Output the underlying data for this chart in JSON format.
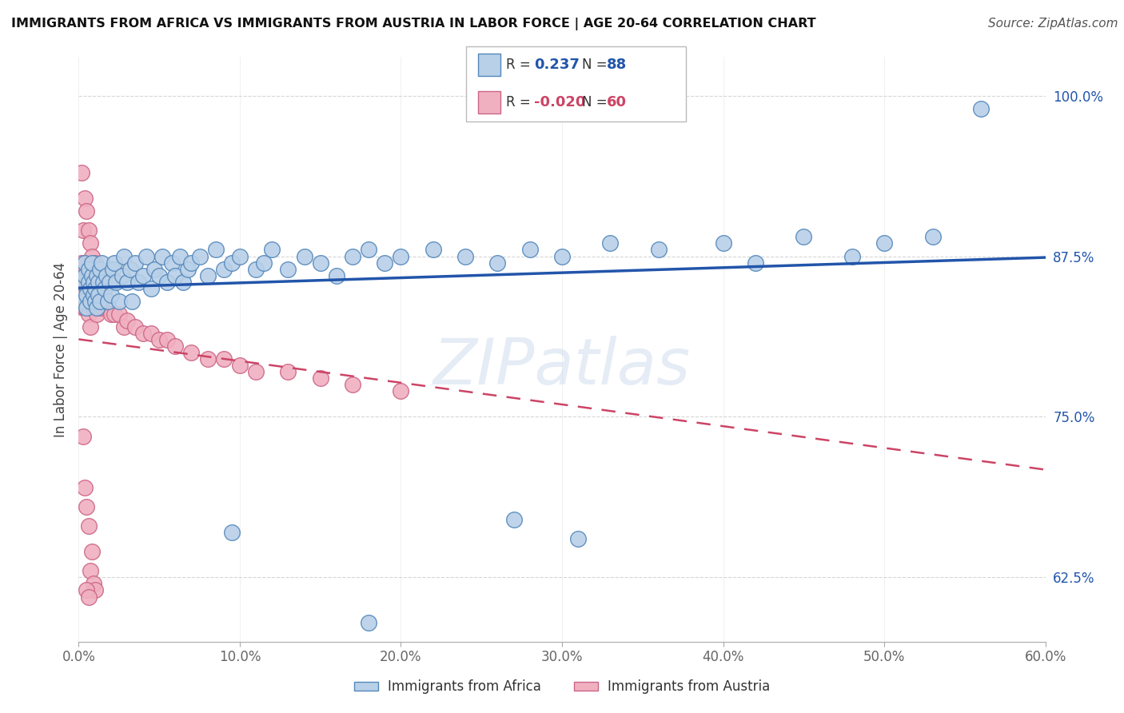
{
  "title": "IMMIGRANTS FROM AFRICA VS IMMIGRANTS FROM AUSTRIA IN LABOR FORCE | AGE 20-64 CORRELATION CHART",
  "source": "Source: ZipAtlas.com",
  "ylabel": "In Labor Force | Age 20-64",
  "xlim": [
    0.0,
    0.6
  ],
  "ylim": [
    0.575,
    1.03
  ],
  "xticks": [
    0.0,
    0.1,
    0.2,
    0.3,
    0.4,
    0.5,
    0.6
  ],
  "xticklabels": [
    "0.0%",
    "10.0%",
    "20.0%",
    "30.0%",
    "40.0%",
    "50.0%",
    "60.0%"
  ],
  "yticks": [
    0.625,
    0.75,
    0.875,
    1.0
  ],
  "yticklabels": [
    "62.5%",
    "75.0%",
    "87.5%",
    "100.0%"
  ],
  "africa_color": "#b8d0e8",
  "africa_edge": "#5588bb",
  "austria_color": "#f0b0c0",
  "austria_edge": "#cc6688",
  "africa_R": 0.237,
  "africa_N": 88,
  "austria_R": -0.02,
  "austria_N": 60,
  "trend_blue": "#2255aa",
  "trend_pink": "#cc4466",
  "watermark": "ZIPatlas",
  "legend_label1": "Immigrants from Africa",
  "legend_label2": "Immigrants from Austria",
  "africa_points_x": [
    0.002,
    0.003,
    0.004,
    0.004,
    0.005,
    0.005,
    0.006,
    0.006,
    0.007,
    0.007,
    0.008,
    0.008,
    0.009,
    0.009,
    0.01,
    0.01,
    0.011,
    0.011,
    0.012,
    0.012,
    0.013,
    0.013,
    0.014,
    0.015,
    0.016,
    0.017,
    0.018,
    0.019,
    0.02,
    0.021,
    0.022,
    0.023,
    0.025,
    0.027,
    0.028,
    0.03,
    0.032,
    0.033,
    0.035,
    0.037,
    0.04,
    0.042,
    0.045,
    0.047,
    0.05,
    0.052,
    0.055,
    0.058,
    0.06,
    0.063,
    0.065,
    0.068,
    0.07,
    0.075,
    0.08,
    0.085,
    0.09,
    0.095,
    0.1,
    0.11,
    0.115,
    0.12,
    0.13,
    0.14,
    0.15,
    0.16,
    0.17,
    0.18,
    0.19,
    0.2,
    0.22,
    0.24,
    0.26,
    0.28,
    0.3,
    0.33,
    0.36,
    0.4,
    0.45,
    0.5,
    0.53,
    0.56,
    0.27,
    0.31,
    0.18,
    0.095,
    0.42,
    0.48
  ],
  "africa_points_y": [
    0.855,
    0.84,
    0.87,
    0.86,
    0.845,
    0.835,
    0.855,
    0.865,
    0.84,
    0.85,
    0.86,
    0.87,
    0.855,
    0.845,
    0.84,
    0.85,
    0.835,
    0.86,
    0.855,
    0.845,
    0.865,
    0.84,
    0.87,
    0.855,
    0.85,
    0.86,
    0.84,
    0.855,
    0.845,
    0.865,
    0.87,
    0.855,
    0.84,
    0.86,
    0.875,
    0.855,
    0.865,
    0.84,
    0.87,
    0.855,
    0.86,
    0.875,
    0.85,
    0.865,
    0.86,
    0.875,
    0.855,
    0.87,
    0.86,
    0.875,
    0.855,
    0.865,
    0.87,
    0.875,
    0.86,
    0.88,
    0.865,
    0.87,
    0.875,
    0.865,
    0.87,
    0.88,
    0.865,
    0.875,
    0.87,
    0.86,
    0.875,
    0.88,
    0.87,
    0.875,
    0.88,
    0.875,
    0.87,
    0.88,
    0.875,
    0.885,
    0.88,
    0.885,
    0.89,
    0.885,
    0.89,
    0.99,
    0.67,
    0.655,
    0.59,
    0.66,
    0.87,
    0.875
  ],
  "austria_points_x": [
    0.001,
    0.002,
    0.002,
    0.003,
    0.003,
    0.004,
    0.004,
    0.005,
    0.005,
    0.006,
    0.006,
    0.006,
    0.007,
    0.007,
    0.007,
    0.008,
    0.008,
    0.009,
    0.009,
    0.01,
    0.01,
    0.011,
    0.011,
    0.012,
    0.012,
    0.013,
    0.014,
    0.015,
    0.016,
    0.018,
    0.02,
    0.022,
    0.025,
    0.028,
    0.03,
    0.035,
    0.04,
    0.045,
    0.05,
    0.055,
    0.06,
    0.07,
    0.08,
    0.09,
    0.1,
    0.11,
    0.13,
    0.15,
    0.17,
    0.2,
    0.003,
    0.004,
    0.005,
    0.006,
    0.008,
    0.007,
    0.009,
    0.01,
    0.005,
    0.006
  ],
  "austria_points_y": [
    0.86,
    0.94,
    0.87,
    0.895,
    0.835,
    0.92,
    0.835,
    0.91,
    0.85,
    0.895,
    0.845,
    0.83,
    0.885,
    0.84,
    0.82,
    0.875,
    0.84,
    0.865,
    0.835,
    0.87,
    0.84,
    0.855,
    0.83,
    0.85,
    0.835,
    0.84,
    0.845,
    0.835,
    0.84,
    0.835,
    0.83,
    0.83,
    0.83,
    0.82,
    0.825,
    0.82,
    0.815,
    0.815,
    0.81,
    0.81,
    0.805,
    0.8,
    0.795,
    0.795,
    0.79,
    0.785,
    0.785,
    0.78,
    0.775,
    0.77,
    0.735,
    0.695,
    0.68,
    0.665,
    0.645,
    0.63,
    0.62,
    0.615,
    0.615,
    0.61
  ]
}
